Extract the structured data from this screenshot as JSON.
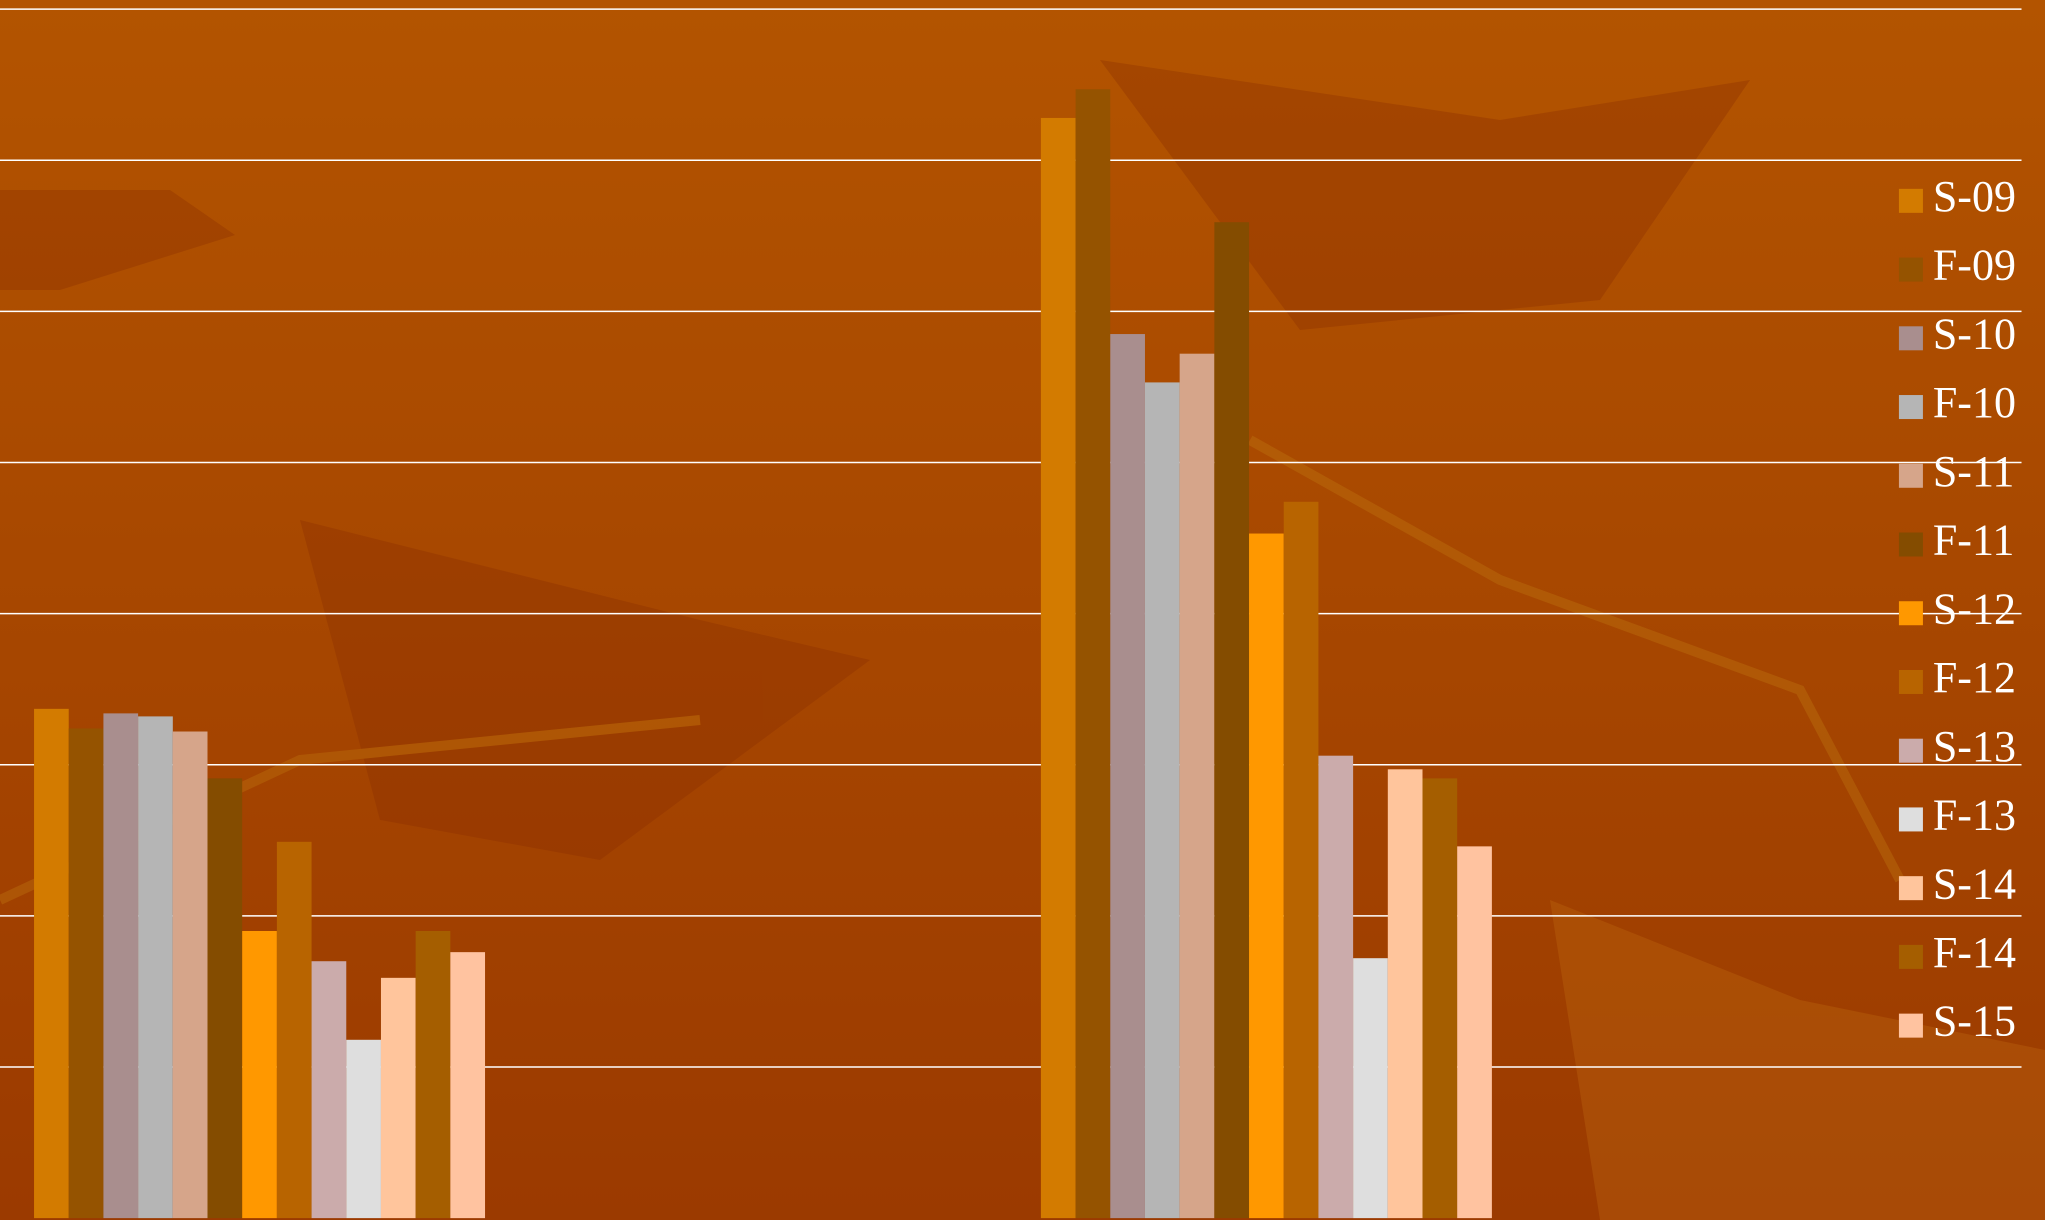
{
  "chart_data": {
    "type": "bar",
    "categories": [
      null,
      null
    ],
    "series": [
      {
        "name": "S-09",
        "color": "#d37b00",
        "values": [
          3.37,
          7.28
        ]
      },
      {
        "name": "F-09",
        "color": "#955300",
        "values": [
          3.24,
          7.47
        ]
      },
      {
        "name": "S-10",
        "color": "#a98e8e",
        "values": [
          3.34,
          5.85
        ]
      },
      {
        "name": "F-10",
        "color": "#b5b5b5",
        "values": [
          3.32,
          5.53
        ]
      },
      {
        "name": "S-11",
        "color": "#d6a58a",
        "values": [
          3.22,
          5.72
        ]
      },
      {
        "name": "F-11",
        "color": "#844c00",
        "values": [
          2.91,
          6.59
        ]
      },
      {
        "name": "S-12",
        "color": "#ff9800",
        "values": [
          1.9,
          4.53
        ]
      },
      {
        "name": "F-12",
        "color": "#b86400",
        "values": [
          2.49,
          4.74
        ]
      },
      {
        "name": "S-13",
        "color": "#cbabab",
        "values": [
          1.7,
          3.06
        ]
      },
      {
        "name": "F-13",
        "color": "#dedede",
        "values": [
          1.18,
          1.72
        ]
      },
      {
        "name": "S-14",
        "color": "#ffc59c",
        "values": [
          1.59,
          2.97
        ]
      },
      {
        "name": "F-14",
        "color": "#a55e00",
        "values": [
          1.9,
          2.91
        ]
      },
      {
        "name": "S-15",
        "color": "#ffc3a0",
        "values": [
          1.76,
          2.46
        ]
      }
    ],
    "ylim": [
      0,
      8
    ],
    "yticks": [
      1,
      2,
      3,
      4,
      5,
      6,
      7,
      8
    ],
    "grid": true,
    "legend": "right"
  }
}
